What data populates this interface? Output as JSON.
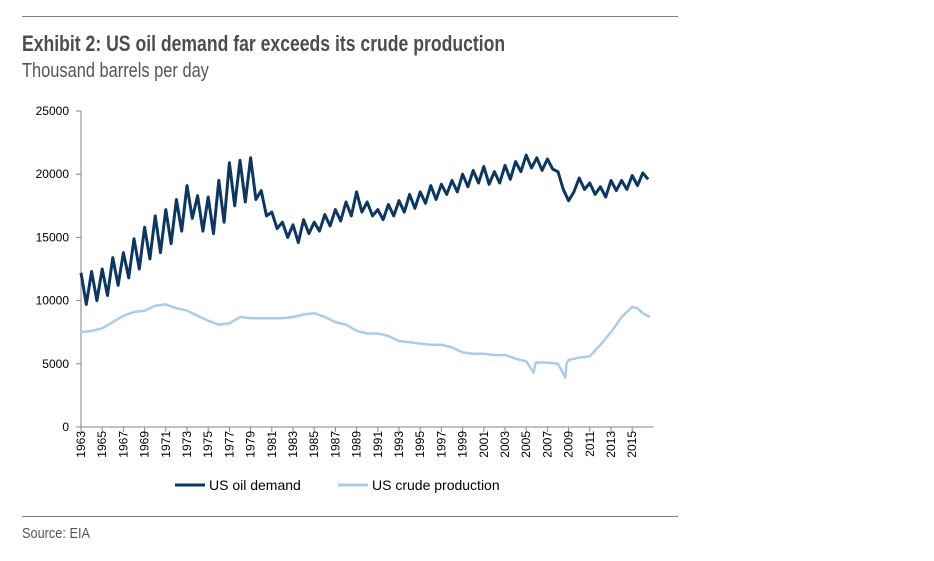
{
  "title": "Exhibit 2: US oil demand far exceeds its crude production",
  "subtitle": "Thousand barrels per day",
  "source": "Source: EIA",
  "chart_data": {
    "type": "line",
    "title": "Exhibit 2: US oil demand far exceeds its crude production",
    "ylabel": "Thousand barrels per day",
    "xlabel": "",
    "xlim": [
      1963,
      2017
    ],
    "ylim": [
      0,
      25000
    ],
    "yticks": [
      0,
      5000,
      10000,
      15000,
      20000,
      25000
    ],
    "xticks": [
      "1963",
      "1965",
      "1967",
      "1969",
      "1971",
      "1973",
      "1975",
      "1977",
      "1979",
      "1981",
      "1983",
      "1985",
      "1987",
      "1989",
      "1991",
      "1993",
      "1995",
      "1997",
      "1999",
      "2001",
      "2003",
      "2005",
      "2007",
      "2009",
      "2011",
      "2013",
      "2015"
    ],
    "legend_position": "bottom",
    "grid": false,
    "series": [
      {
        "name": "US oil demand",
        "color": "#0c3762",
        "x": [
          1963,
          1963.5,
          1964,
          1964.5,
          1965,
          1965.5,
          1966,
          1966.5,
          1967,
          1967.5,
          1968,
          1968.5,
          1969,
          1969.5,
          1970,
          1970.5,
          1971,
          1971.5,
          1972,
          1972.5,
          1973,
          1973.5,
          1974,
          1974.5,
          1975,
          1975.5,
          1976,
          1976.5,
          1977,
          1977.5,
          1978,
          1978.5,
          1979,
          1979.5,
          1980,
          1980.5,
          1981,
          1981.5,
          1982,
          1982.5,
          1983,
          1983.5,
          1984,
          1984.5,
          1985,
          1985.5,
          1986,
          1986.5,
          1987,
          1987.5,
          1988,
          1988.5,
          1989,
          1989.5,
          1990,
          1990.5,
          1991,
          1991.5,
          1992,
          1992.5,
          1993,
          1993.5,
          1994,
          1994.5,
          1995,
          1995.5,
          1996,
          1996.5,
          1997,
          1997.5,
          1998,
          1998.5,
          1999,
          1999.5,
          2000,
          2000.5,
          2001,
          2001.5,
          2002,
          2002.5,
          2003,
          2003.5,
          2004,
          2004.5,
          2005,
          2005.5,
          2006,
          2006.5,
          2007,
          2007.5,
          2008,
          2008.5,
          2009,
          2009.5,
          2010,
          2010.5,
          2011,
          2011.5,
          2012,
          2012.5,
          2013,
          2013.5,
          2014,
          2014.5,
          2015,
          2015.5,
          2016,
          2016.5
        ],
        "values": [
          12200,
          9700,
          12300,
          10000,
          12500,
          10400,
          13400,
          11200,
          13800,
          11800,
          14900,
          12500,
          15800,
          13300,
          16700,
          13800,
          17200,
          14500,
          18000,
          15500,
          19100,
          16500,
          18300,
          15500,
          18200,
          15300,
          19500,
          16200,
          20900,
          17500,
          21100,
          17800,
          21300,
          18000,
          18700,
          16700,
          17000,
          15700,
          16200,
          15000,
          16000,
          14600,
          16400,
          15300,
          16200,
          15500,
          16800,
          15900,
          17200,
          16300,
          17800,
          16700,
          18600,
          17000,
          17800,
          16700,
          17200,
          16400,
          17600,
          16700,
          17900,
          17000,
          18400,
          17300,
          18600,
          17700,
          19100,
          18000,
          19200,
          18400,
          19500,
          18600,
          20000,
          19000,
          20300,
          19300,
          20600,
          19200,
          20200,
          19300,
          20700,
          19600,
          21000,
          20200,
          21500,
          20500,
          21300,
          20300,
          21200,
          20400,
          20200,
          18800,
          17900,
          18600,
          19700,
          18800,
          19300,
          18400,
          19000,
          18200,
          19500,
          18700,
          19500,
          18800,
          19900,
          19100,
          20100,
          19600
        ]
      },
      {
        "name": "US crude production",
        "color": "#a9cde9",
        "x": [
          1963,
          1964,
          1965,
          1966,
          1967,
          1968,
          1969,
          1970,
          1971,
          1972,
          1973,
          1974,
          1975,
          1976,
          1977,
          1978,
          1979,
          1980,
          1981,
          1982,
          1983,
          1984,
          1985,
          1986,
          1987,
          1988,
          1989,
          1990,
          1991,
          1992,
          1993,
          1994,
          1995,
          1996,
          1997,
          1998,
          1999,
          2000,
          2001,
          2002,
          2003,
          2004,
          2005,
          2005.7,
          2005.9,
          2006,
          2007,
          2008,
          2008.7,
          2008.8,
          2009,
          2010,
          2011,
          2012,
          2013,
          2014,
          2015,
          2015.5,
          2016,
          2016.7
        ],
        "values": [
          7500,
          7600,
          7800,
          8300,
          8800,
          9100,
          9200,
          9600,
          9700,
          9400,
          9200,
          8800,
          8400,
          8100,
          8200,
          8700,
          8600,
          8600,
          8600,
          8600,
          8700,
          8900,
          9000,
          8700,
          8300,
          8100,
          7600,
          7400,
          7400,
          7200,
          6800,
          6700,
          6600,
          6500,
          6500,
          6300,
          5900,
          5800,
          5800,
          5700,
          5700,
          5400,
          5200,
          4300,
          5100,
          5100,
          5100,
          5000,
          3900,
          5000,
          5300,
          5500,
          5600,
          6500,
          7500,
          8700,
          9500,
          9400,
          9000,
          8700
        ]
      }
    ]
  }
}
